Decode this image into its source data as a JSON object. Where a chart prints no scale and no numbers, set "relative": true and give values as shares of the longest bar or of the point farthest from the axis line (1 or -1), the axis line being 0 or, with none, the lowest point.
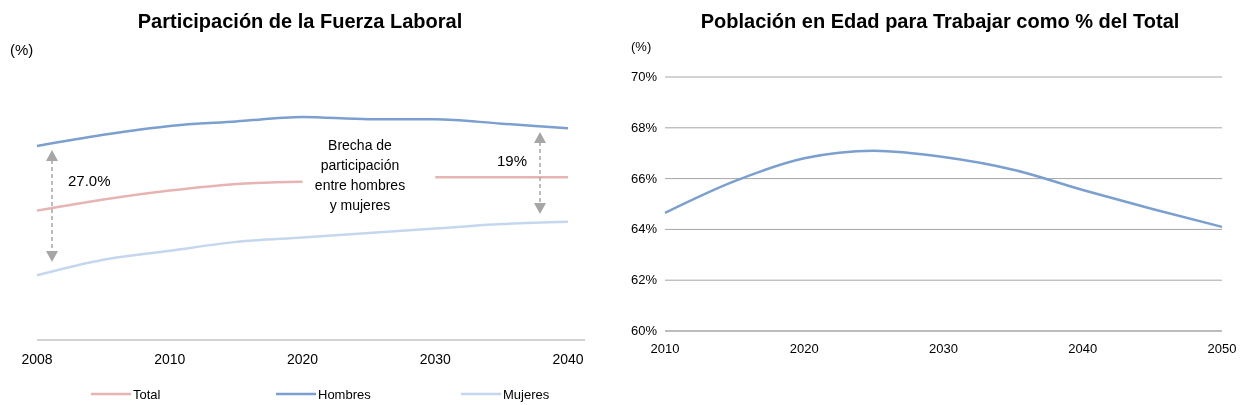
{
  "chart_data": [
    {
      "type": "line",
      "title": "Participación de la Fuerza Laboral",
      "relative": true,
      "categories": [
        "2008",
        null,
        "2010",
        null,
        "2020",
        null,
        "2030",
        null,
        "2040"
      ],
      "series": [
        {
          "name": "Total",
          "color": "#e6b5b3",
          "values": [
            0.58,
            0.63,
            0.67,
            0.7,
            0.71,
            null,
            0.73,
            0.73,
            0.73
          ]
        },
        {
          "name": "Hombres",
          "color": "#7b9fce",
          "values": [
            0.87,
            0.92,
            0.96,
            0.98,
            1,
            0.99,
            0.99,
            0.97,
            0.95
          ]
        },
        {
          "name": "Mujeres",
          "color": "#c5d7ee",
          "values": [
            0.29,
            0.36,
            0.4,
            0.44,
            0.46,
            0.48,
            0.5,
            0.52,
            0.53
          ]
        }
      ],
      "legend": "bottom",
      "annotations": [
        "(%)",
        "27.0%",
        "Brecha de\nparticipación\nentre hombres\ny mujeres",
        "19%"
      ]
    },
    {
      "type": "line",
      "title": "Población en Edad para Trabajar como % del Total",
      "ylabel": "(%)",
      "x": [
        2010,
        2015,
        2020,
        2025,
        2030,
        2035,
        2040,
        2045,
        2050
      ],
      "series": [
        {
          "color": "#7b9fce",
          "values": [
            64.65,
            65.9,
            66.8,
            67.1,
            66.85,
            66.35,
            65.55,
            64.8,
            64.1
          ]
        }
      ],
      "xlim": [
        2010,
        2050
      ],
      "xticks": [
        2010,
        2020,
        2030,
        2040,
        2050
      ],
      "ylim": [
        60,
        70
      ],
      "yticks": [
        {
          "value": 60,
          "label": "60%"
        },
        {
          "value": 62,
          "label": "62%"
        },
        {
          "value": 64,
          "label": "64%"
        },
        {
          "value": 66,
          "label": "66%"
        },
        {
          "value": 68,
          "label": "68%"
        },
        {
          "value": 70,
          "label": "70%"
        }
      ],
      "grid": "y"
    }
  ]
}
